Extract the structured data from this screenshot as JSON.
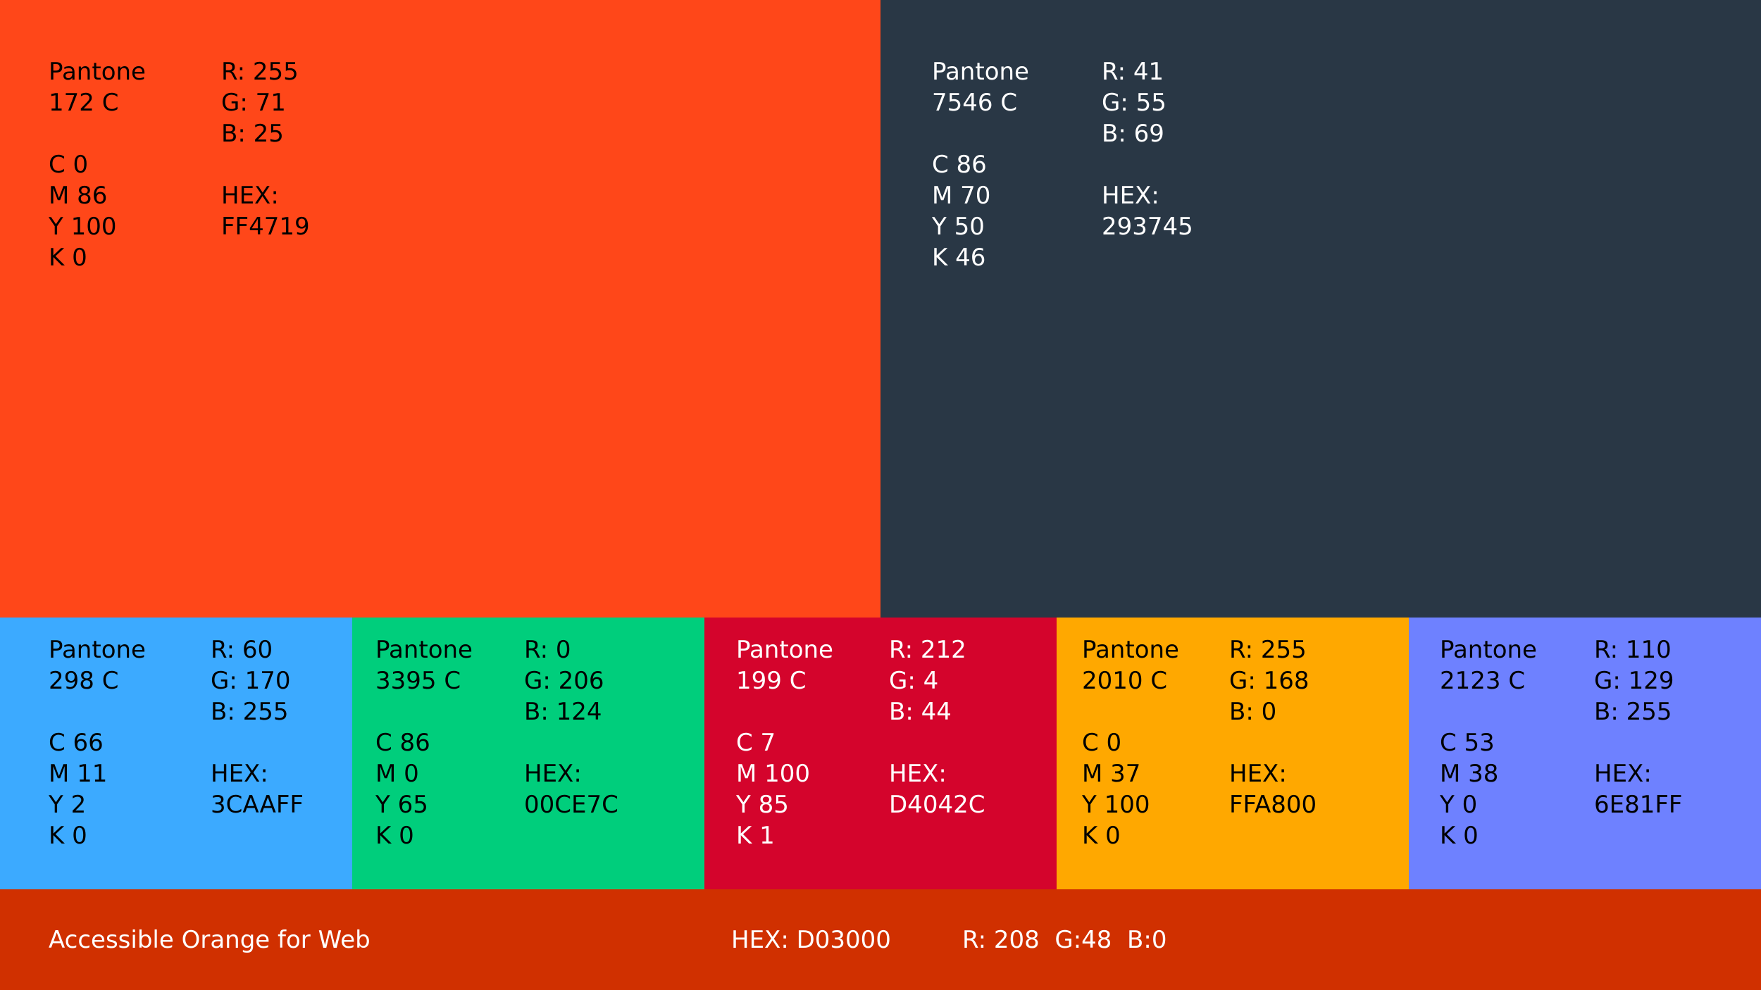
{
  "swatches": [
    {
      "color": "#FF4719",
      "text_color": "#000000",
      "pantone": [
        "Pantone",
        "172 C"
      ],
      "cmyk": [
        "C 0",
        "M 86",
        "Y 100",
        "K 0"
      ],
      "rgb": [
        "R: 255",
        "G: 71",
        "B: 25"
      ],
      "hex": [
        "HEX:",
        "FF4719"
      ]
    },
    {
      "color": "#293745",
      "text_color": "#ffffff",
      "pantone": [
        "Pantone",
        "7546 C"
      ],
      "cmyk": [
        "C 86",
        "M 70",
        "Y 50",
        "K 46"
      ],
      "rgb": [
        "R: 41",
        "G: 55",
        "B: 69"
      ],
      "hex": [
        "HEX:",
        "293745"
      ]
    },
    {
      "color": "#3CAAFF",
      "text_color": "#000000",
      "pantone": [
        "Pantone",
        "298 C"
      ],
      "cmyk": [
        "C 66",
        "M 11",
        "Y 2",
        "K 0"
      ],
      "rgb": [
        "R: 60",
        "G: 170",
        "B: 255"
      ],
      "hex": [
        "HEX:",
        "3CAAFF"
      ]
    },
    {
      "color": "#00CE7C",
      "text_color": "#000000",
      "pantone": [
        "Pantone",
        "3395 C"
      ],
      "cmyk": [
        "C 86",
        "M 0",
        "Y 65",
        "K 0"
      ],
      "rgb": [
        "R: 0",
        "G: 206",
        "B: 124"
      ],
      "hex": [
        "HEX:",
        "00CE7C"
      ]
    },
    {
      "color": "#D4042C",
      "text_color": "#ffffff",
      "pantone": [
        "Pantone",
        "199 C"
      ],
      "cmyk": [
        "C 7",
        "M 100",
        "Y 85",
        "K 1"
      ],
      "rgb": [
        "R: 212",
        "G: 4",
        "B: 44"
      ],
      "hex": [
        "HEX:",
        "D4042C"
      ]
    },
    {
      "color": "#FFA800",
      "text_color": "#000000",
      "pantone": [
        "Pantone",
        "2010 C"
      ],
      "cmyk": [
        "C 0",
        "M 37",
        "Y 100",
        "K 0"
      ],
      "rgb": [
        "R: 255",
        "G: 168",
        "B: 0"
      ],
      "hex": [
        "HEX:",
        "FFA800"
      ]
    },
    {
      "color": "#6E81FF",
      "text_color": "#000000",
      "pantone": [
        "Pantone",
        "2123 C"
      ],
      "cmyk": [
        "C 53",
        "M 38",
        "Y 0",
        "K 0"
      ],
      "rgb": [
        "R: 110",
        "G: 129",
        "B: 255"
      ],
      "hex": [
        "HEX:",
        "6E81FF"
      ]
    }
  ],
  "footer": {
    "color": "#D03000",
    "text_color": "#ffffff",
    "label": "Accessible Orange for Web",
    "hex": "HEX: D03000",
    "rgb": "R: 208  G:48  B:0"
  }
}
